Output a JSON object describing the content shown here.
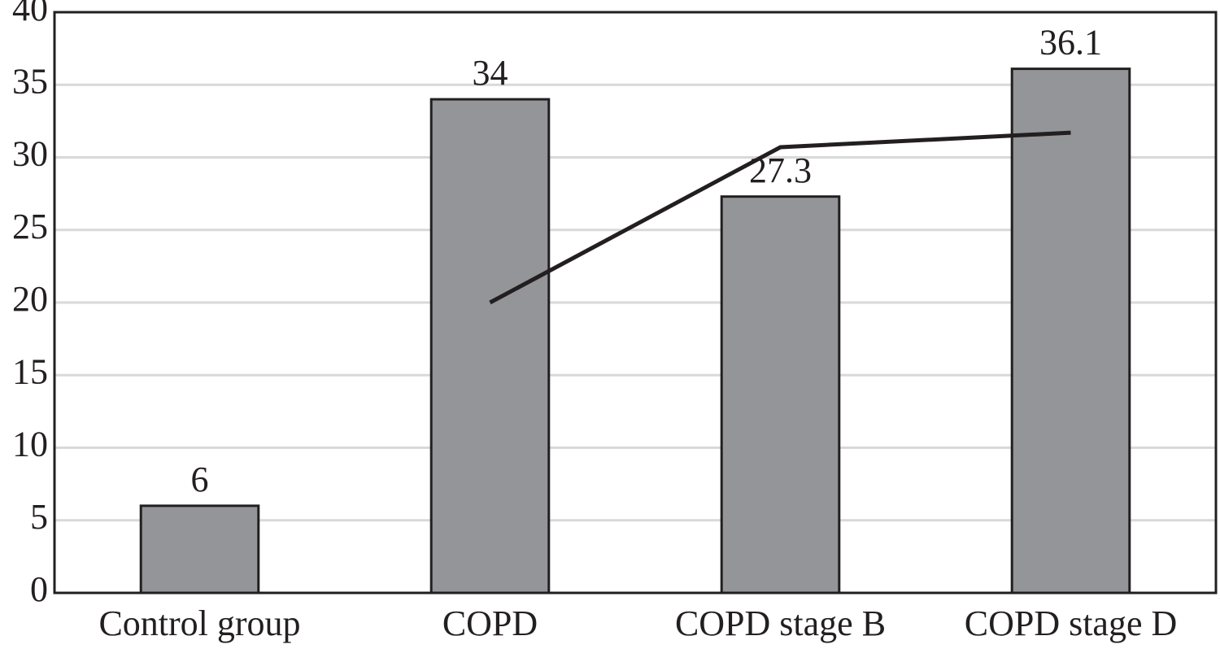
{
  "chart_data": {
    "type": "bar",
    "categories": [
      "Control group",
      "COPD",
      "COPD stage B",
      "COPD stage D"
    ],
    "series": [
      {
        "type": "bar",
        "color": "#939598",
        "values": [
          6,
          34,
          27.3,
          36.1
        ],
        "data_labels": true
      },
      {
        "type": "line",
        "color": "#231f20",
        "values": [
          null,
          20,
          30.7,
          31.7
        ]
      }
    ],
    "ylim": [
      0,
      40
    ],
    "yticks": [
      0,
      5,
      10,
      15,
      20,
      25,
      30,
      35,
      40
    ],
    "grid": true
  }
}
